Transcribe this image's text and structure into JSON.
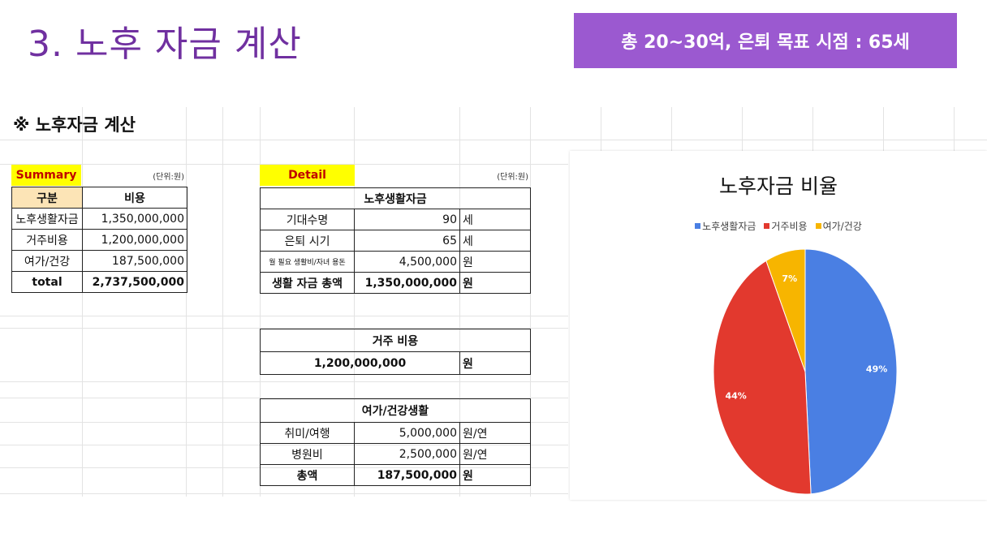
{
  "slide": {
    "title": "3. 노후 자금 계산",
    "banner": "총 20~30억, 은퇴 목표 시점  : 65세"
  },
  "sheet": {
    "heading": "※ 노후자금 계산",
    "summary": {
      "label": "Summary",
      "unit": "(단위:원)",
      "headers": [
        "구분",
        "비용"
      ],
      "rows": [
        [
          "노후생활자금",
          "1,350,000,000"
        ],
        [
          "거주비용",
          "1,200,000,000"
        ],
        [
          "여가/건강",
          "187,500,000"
        ],
        [
          "total",
          "2,737,500,000"
        ]
      ]
    },
    "detail": {
      "label": "Detail",
      "unit": "(단위:원)",
      "living": {
        "title": "노후생활자금",
        "rows": [
          [
            "기대수명",
            "90",
            "세"
          ],
          [
            "은퇴 시기",
            "65",
            "세"
          ],
          [
            "월 필요 생활비/자녀 용돈",
            "4,500,000",
            "원"
          ],
          [
            "생활 자금 총액",
            "1,350,000,000",
            "원"
          ]
        ]
      },
      "housing": {
        "title": "거주 비용",
        "value": "1,200,000,000",
        "unit": "원"
      },
      "leisure": {
        "title": "여가/건강생활",
        "rows": [
          [
            "취미/여행",
            "5,000,000",
            "원/연"
          ],
          [
            "병원비",
            "2,500,000",
            "원/연"
          ],
          [
            "총액",
            "187,500,000",
            "원"
          ]
        ]
      }
    }
  },
  "chart_data": {
    "type": "pie",
    "title": "노후자금 비율",
    "legend_position": "top",
    "categories": [
      "노후생활자금",
      "거주비용",
      "여가/건강"
    ],
    "values": [
      49,
      44,
      7
    ],
    "labels": [
      "49%",
      "44%",
      "7%"
    ],
    "colors": [
      "#4a7fe3",
      "#e2392e",
      "#f7b500"
    ]
  }
}
